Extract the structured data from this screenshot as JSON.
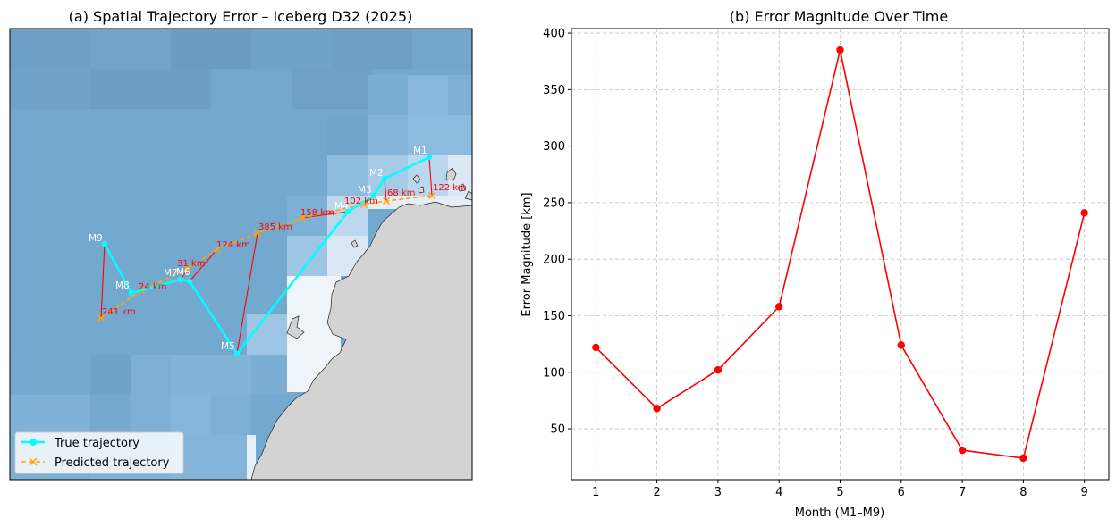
{
  "chart_data": [
    {
      "type": "scatter",
      "title": "(a) Spatial Trajectory Error – Iceberg D32 (2025)",
      "xlabel": "",
      "ylabel": "",
      "grid": false,
      "legend_placement": "bottom-left",
      "series": [
        {
          "name": "True trajectory",
          "color": "#00ffff",
          "marker": "circle",
          "linestyle": "solid",
          "labels": [
            "M1",
            "M2",
            "M3",
            "M4",
            "M5",
            "M6",
            "M7",
            "M8",
            "M9"
          ]
        },
        {
          "name": "Predicted trajectory",
          "color": "#ffa500",
          "marker": "x",
          "linestyle": "dashed"
        }
      ],
      "error_labels": [
        "122 km",
        "68 km",
        "102 km",
        "158 km",
        "385 km",
        "124 km",
        "31 km",
        "24 km",
        "241 km"
      ],
      "error_color": "#ff0000",
      "ocean_color": "#74a9cf",
      "land_color": "#d3d3d3"
    },
    {
      "type": "line",
      "title": "(b) Error Magnitude Over Time",
      "xlabel": "Month (M1–M9)",
      "ylabel": "Error Magnitude [km]",
      "grid": true,
      "x": [
        1,
        2,
        3,
        4,
        5,
        6,
        7,
        8,
        9
      ],
      "xticks": [
        "1",
        "2",
        "3",
        "4",
        "5",
        "6",
        "7",
        "8",
        "9"
      ],
      "yticks": [
        "50",
        "100",
        "150",
        "200",
        "250",
        "300",
        "350",
        "400"
      ],
      "ylim": [
        5,
        404
      ],
      "xlim": [
        0.6,
        9.4
      ],
      "series": [
        {
          "color": "#ff0000",
          "values": [
            122,
            68,
            102,
            158,
            385,
            124,
            31,
            24,
            241
          ]
        }
      ]
    }
  ]
}
